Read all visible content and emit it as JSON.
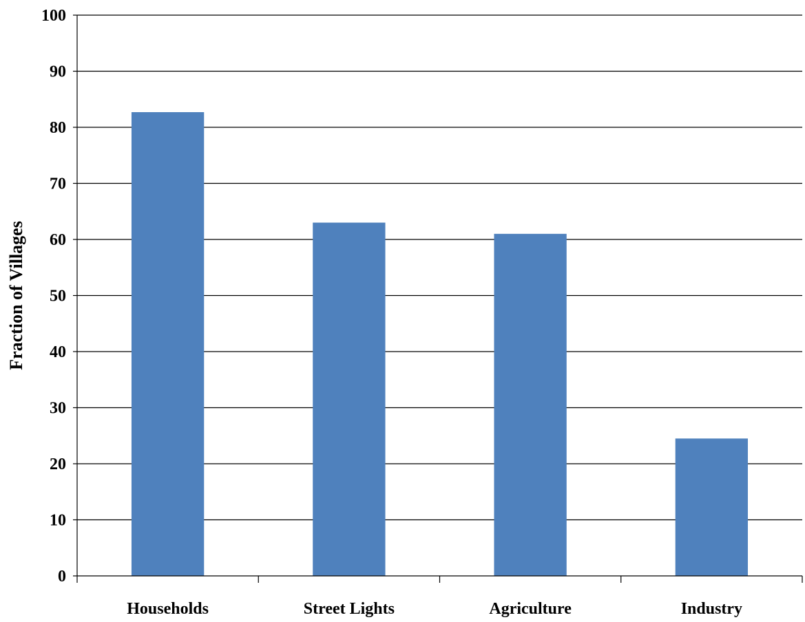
{
  "chart_data": {
    "type": "bar",
    "categories": [
      "Households",
      "Street Lights",
      "Agriculture",
      "Industry"
    ],
    "values": [
      82.7,
      63.0,
      61.0,
      24.5
    ],
    "title": "",
    "xlabel": "",
    "ylabel": "Fraction of Villages",
    "ylim": [
      0,
      100
    ],
    "yticks": [
      "0",
      "10",
      "20",
      "30",
      "40",
      "50",
      "60",
      "70",
      "80",
      "90",
      "100"
    ],
    "grid": true,
    "legend": "none",
    "bar_color": "#4F81BD"
  }
}
